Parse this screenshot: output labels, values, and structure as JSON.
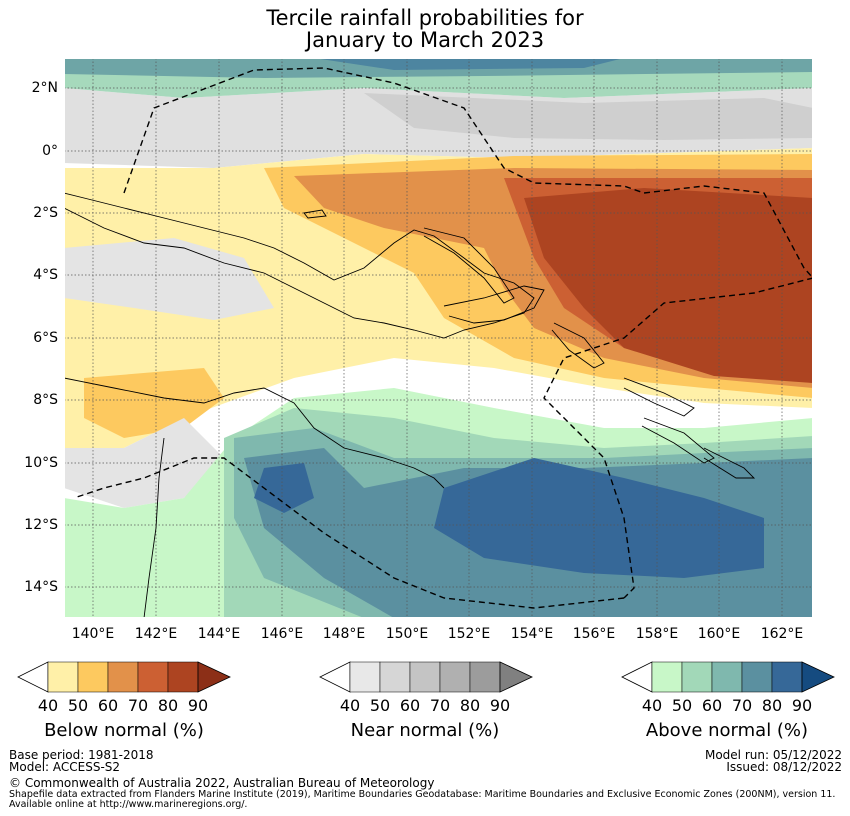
{
  "title": {
    "line1": "Tercile rainfall probabilities for",
    "line2": "January to March 2023"
  },
  "axes": {
    "lat_labels": [
      "2°N",
      "0°",
      "2°S",
      "4°S",
      "6°S",
      "8°S",
      "10°S",
      "12°S",
      "14°S"
    ],
    "lon_labels": [
      "140°E",
      "142°E",
      "144°E",
      "146°E",
      "148°E",
      "150°E",
      "152°E",
      "154°E",
      "156°E",
      "158°E",
      "160°E",
      "162°E"
    ],
    "lat_range": [
      -15,
      3
    ],
    "lon_range": [
      139,
      163
    ]
  },
  "legends": {
    "below": {
      "title": "Below normal (%)",
      "ticks": [
        "40",
        "50",
        "60",
        "70",
        "80",
        "90"
      ],
      "colors": [
        "#fff0a8",
        "#fdc95f",
        "#e2914a",
        "#cc6033",
        "#ad4421",
        "#8c2f17"
      ]
    },
    "near": {
      "title": "Near normal (%)",
      "ticks": [
        "40",
        "50",
        "60",
        "70",
        "80",
        "90"
      ],
      "colors": [
        "#e8e8e8",
        "#d6d6d6",
        "#c4c4c4",
        "#b0b0b0",
        "#9c9c9c",
        "#808080"
      ]
    },
    "above": {
      "title": "Above normal (%)",
      "ticks": [
        "40",
        "50",
        "60",
        "70",
        "80",
        "90"
      ],
      "colors": [
        "#c8f7c8",
        "#a2d8b8",
        "#7fb8ae",
        "#5b90a0",
        "#366898",
        "#154b80"
      ]
    }
  },
  "footer": {
    "base_period": "Base period: 1981-2018",
    "model": "Model: ACCESS-S2",
    "model_run": "Model run: 05/12/2022",
    "issued": "Issued: 08/12/2022",
    "copyright": "© Commonwealth of Australia 2022, Australian Bureau of Meteorology",
    "shapefile_line1": "Shapefile data extracted from Flanders Marine Institute (2019), Maritime Boundaries Geodatabase: Maritime Boundaries and Exclusive Economic Zones (200NM), version 11.",
    "shapefile_line2": "Available online at http://www.marineregions.org/."
  }
}
